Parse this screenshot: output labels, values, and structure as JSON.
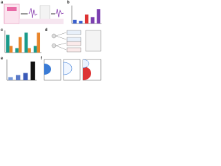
{
  "panels": [
    {
      "label": "a"
    },
    {
      "label": "b",
      "type": "bar",
      "values": [
        2,
        1.5,
        5,
        3.5,
        8
      ],
      "colors": [
        "#3a5fcd",
        "#3a5fcd",
        "#d33",
        "#7b3fb0",
        "#7b3fb0"
      ],
      "ylim": [
        0,
        10
      ]
    },
    {
      "label": "c",
      "type": "grouped",
      "series": [
        {
          "color": "#1a9a8a",
          "values": [
            8,
            2,
            9,
            3
          ]
        },
        {
          "color": "#e8842a",
          "values": [
            3,
            7,
            2,
            9
          ]
        }
      ],
      "ylim": [
        0,
        10
      ]
    },
    {
      "label": "d"
    },
    {
      "label": "e",
      "type": "bar",
      "values": [
        1.5,
        2.5,
        3.5,
        9
      ],
      "colors": [
        "#7a9ad8",
        "#5a7ac8",
        "#3a5ab8",
        "#111"
      ],
      "ylim": [
        0,
        10
      ]
    },
    {
      "label": "f"
    }
  ]
}
